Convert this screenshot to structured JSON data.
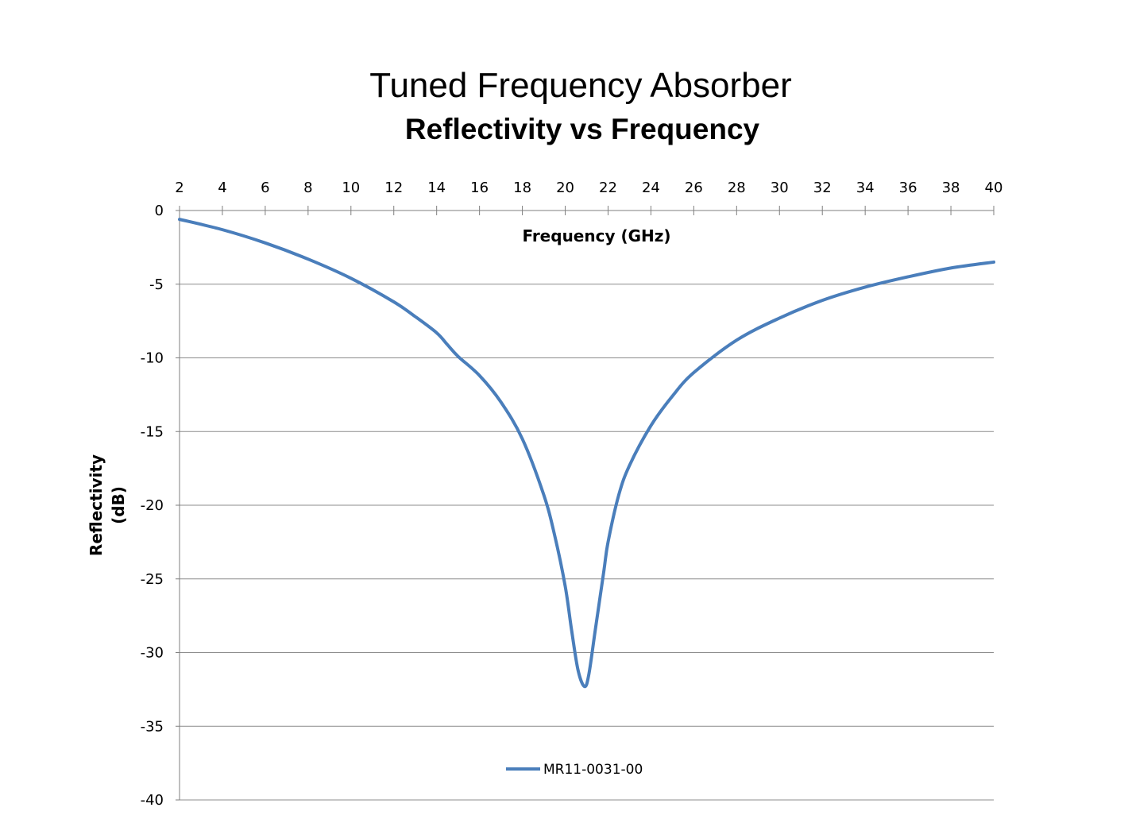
{
  "chart_data": {
    "type": "line",
    "title": "Tuned Frequency Absorber",
    "subtitle": "Reflectivity vs Frequency",
    "xlabel": "Frequency (GHz)",
    "ylabel_line1": "Reflectivity",
    "ylabel_line2": "(dB)",
    "xlim": [
      2,
      40
    ],
    "ylim": [
      -40,
      0
    ],
    "x_axis_position": "top",
    "x_ticks": [
      2,
      4,
      6,
      8,
      10,
      12,
      14,
      16,
      18,
      20,
      22,
      24,
      26,
      28,
      30,
      32,
      34,
      36,
      38,
      40
    ],
    "y_ticks": [
      0,
      -5,
      -10,
      -15,
      -20,
      -25,
      -30,
      -35,
      -40
    ],
    "grid": "horizontal",
    "legend_position": "bottom",
    "colors": {
      "series": "#4a7ebb",
      "grid": "#8c8c8c",
      "axis": "#7f7f7f"
    },
    "series": [
      {
        "name": "MR11-0031-00",
        "x": [
          2,
          4,
          6,
          8,
          10,
          12,
          13,
          14,
          14.5,
          15,
          16,
          17,
          18,
          19,
          19.5,
          20,
          20.3,
          20.6,
          20.9,
          21.1,
          21.4,
          21.8,
          22,
          22.5,
          23,
          24,
          25,
          26,
          28,
          30,
          32,
          34,
          36,
          38,
          40
        ],
        "y": [
          -0.6,
          -1.3,
          -2.2,
          -3.3,
          -4.6,
          -6.2,
          -7.2,
          -8.3,
          -9.1,
          -9.9,
          -11.2,
          -13.0,
          -15.5,
          -19.3,
          -22.0,
          -25.5,
          -28.5,
          -31.2,
          -32.3,
          -31.5,
          -28.5,
          -24.5,
          -22.5,
          -19.3,
          -17.3,
          -14.6,
          -12.6,
          -11.0,
          -8.8,
          -7.3,
          -6.1,
          -5.2,
          -4.5,
          -3.9,
          -3.5
        ]
      }
    ]
  }
}
